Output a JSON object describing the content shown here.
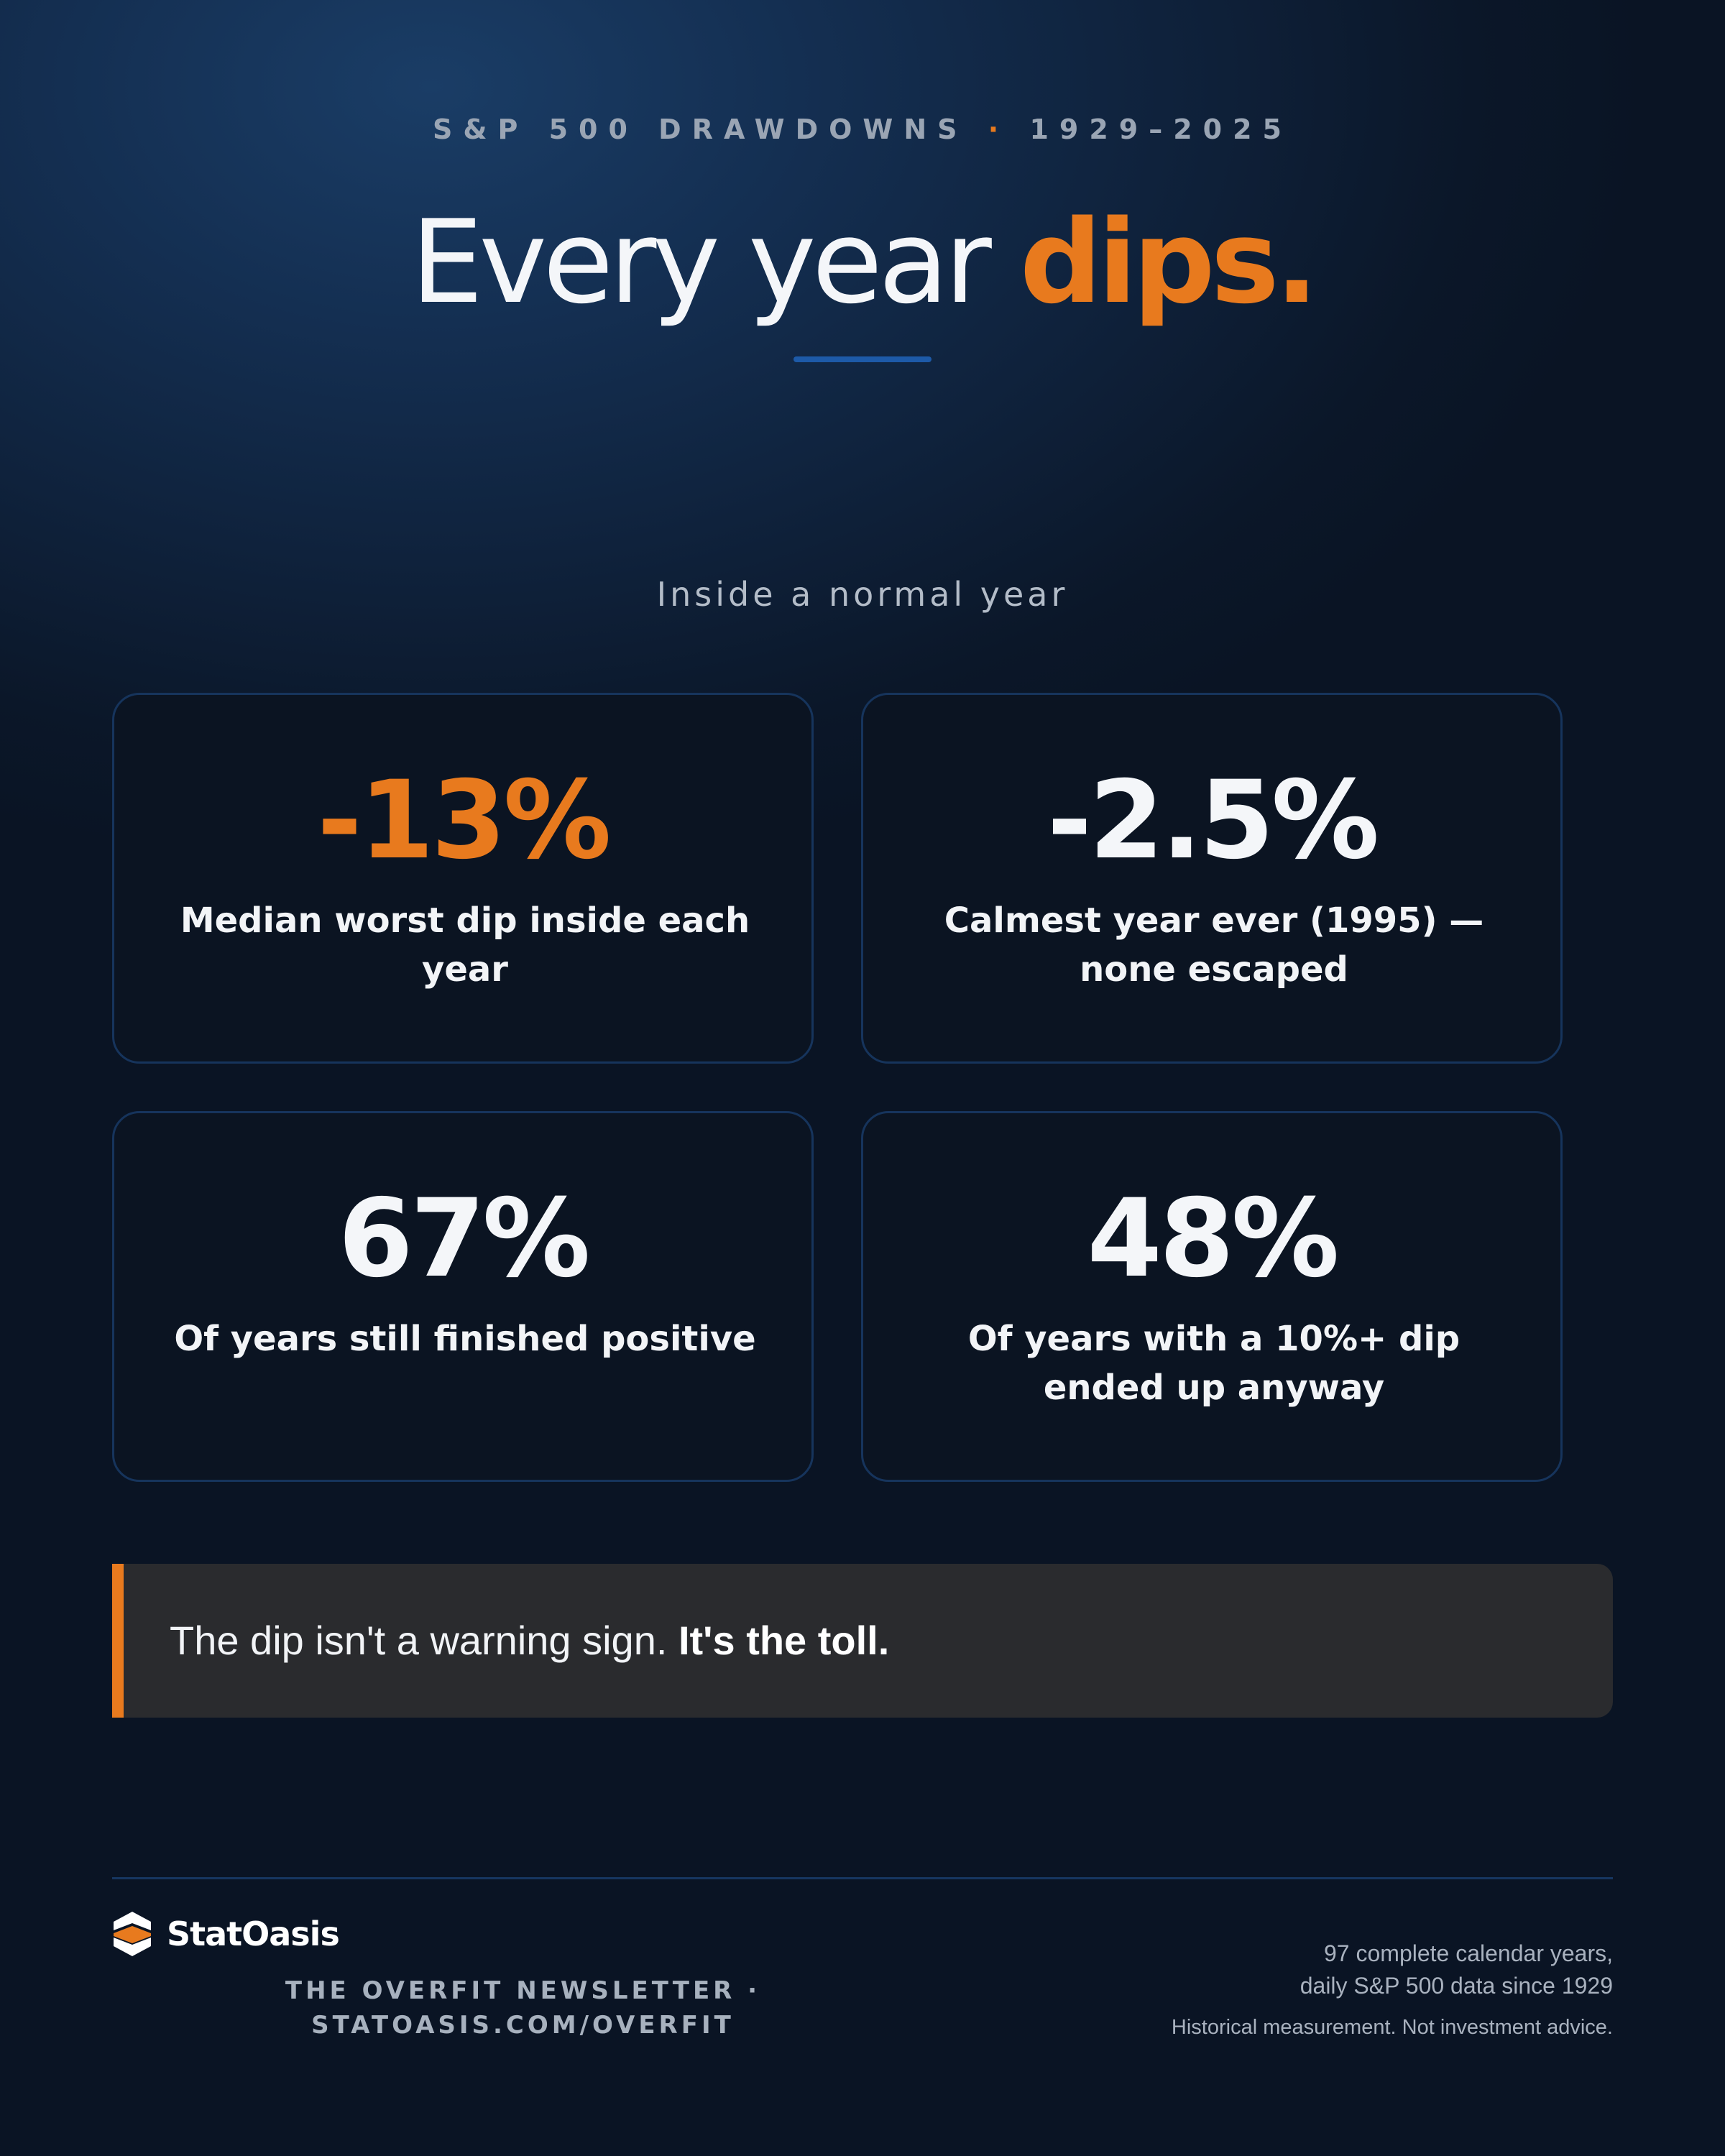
{
  "header": {
    "eyebrow_left": "S&P 500 DRAWDOWNS",
    "eyebrow_sep": "·",
    "eyebrow_right": "1929–2025",
    "title_main": "Every year ",
    "title_accent": "dips."
  },
  "section": {
    "label": "Inside a normal year"
  },
  "stats": [
    {
      "value": "-13%",
      "label": "Median worst dip inside each year"
    },
    {
      "value": "-2.5%",
      "label": "Calmest year ever (1995) — none escaped"
    },
    {
      "value": "67%",
      "label": "Of years still finished positive"
    },
    {
      "value": "48%",
      "label": "Of years with a 10%+ dip ended up anyway"
    }
  ],
  "quote": {
    "text": "The dip isn't a warning sign. ",
    "emphasis": "It's the toll."
  },
  "footer": {
    "brand": "StatOasis",
    "newsletter_line1": "THE OVERFIT NEWSLETTER ·",
    "newsletter_line2": "STATOASIS.COM/OVERFIT",
    "note_line1": "97 complete calendar years,",
    "note_line2": "daily S&P 500 data since 1929",
    "disclaimer": "Historical measurement. Not investment advice."
  },
  "colors": {
    "accent": "#e87a1e",
    "background": "#0f223c",
    "card": "#0b1422",
    "rule": "#1d5aa8"
  }
}
